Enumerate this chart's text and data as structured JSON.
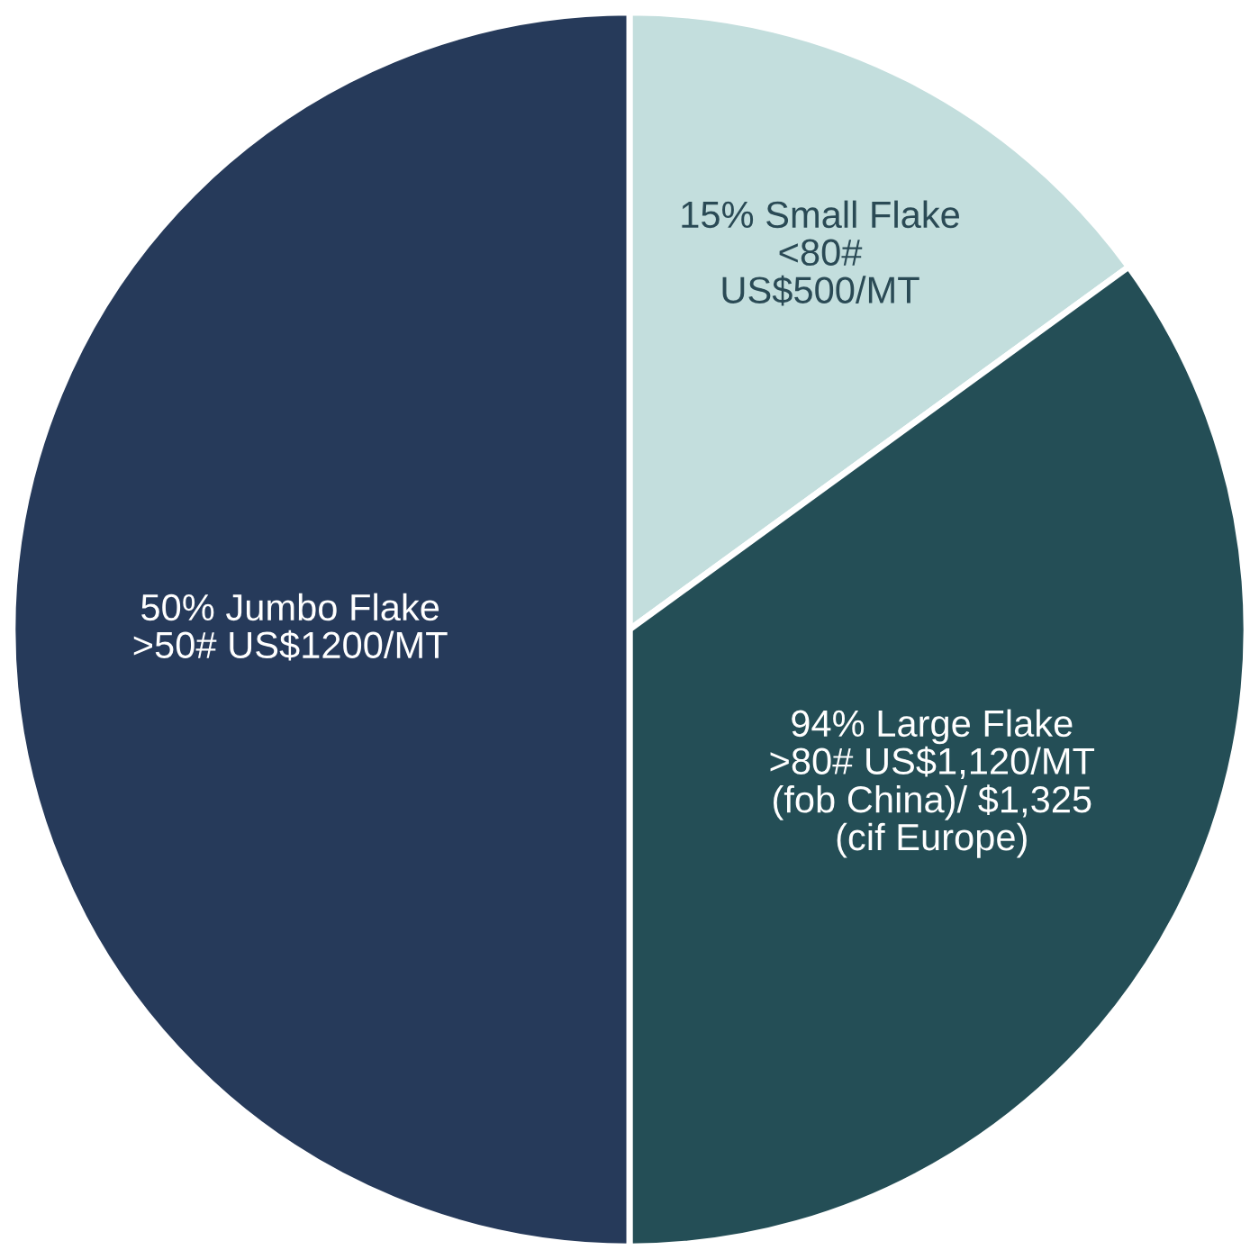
{
  "chart_data": {
    "type": "pie",
    "categories": [
      "15% Small Flake\n<80#\nUS$500/MT",
      "94% Large Flake\n>80# US$1,120/MT\n(fob China)/ $1,325\n(cif Europe)",
      "50% Jumbo Flake\n>50# US$1200/MT"
    ],
    "values": [
      15,
      35,
      50
    ],
    "colors": [
      "#c3dedd",
      "#244e56",
      "#263a5a"
    ]
  }
}
